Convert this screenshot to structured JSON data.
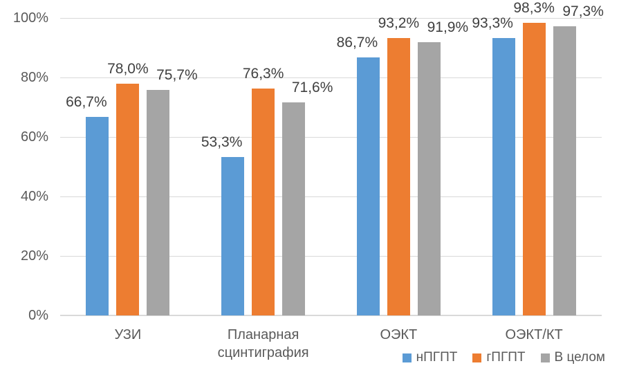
{
  "chart_data": {
    "type": "bar",
    "title": "",
    "xlabel": "",
    "ylabel": "",
    "grid": true,
    "categories": [
      "УЗИ",
      "Планарная сцинтиграфия",
      "ОЭКТ",
      "ОЭКТ/КТ"
    ],
    "series": [
      {
        "name": "нПГПТ",
        "color": "#5B9BD5",
        "values": [
          66.7,
          53.3,
          86.7,
          93.3
        ],
        "labels": [
          "66,7%",
          "53,3%",
          "86,7%",
          "93,3%"
        ]
      },
      {
        "name": "гПГПТ",
        "color": "#ED7D31",
        "values": [
          78.0,
          76.3,
          93.2,
          98.3
        ],
        "labels": [
          "78,0%",
          "76,3%",
          "93,2%",
          "98,3%"
        ]
      },
      {
        "name": "В целом",
        "color": "#A5A5A5",
        "values": [
          75.7,
          71.6,
          91.9,
          97.3
        ],
        "labels": [
          "75,7%",
          "71,6%",
          "91,9%",
          "97,3%"
        ]
      }
    ],
    "y_axis": {
      "min": 0,
      "max": 100,
      "tick_values": [
        0,
        20,
        40,
        60,
        80,
        100
      ],
      "ticks": [
        "0%",
        "20%",
        "40%",
        "60%",
        "80%",
        "100%"
      ]
    },
    "legend": {
      "position": "bottom-right",
      "entries": [
        "нПГПТ",
        "гПГПТ",
        "В целом"
      ]
    },
    "colors": {
      "grid": "#D9D9D9",
      "axis_line": "#D9D9D9",
      "axis_text": "#595959",
      "data_label_text": "#404040",
      "background": "#FFFFFF"
    }
  }
}
